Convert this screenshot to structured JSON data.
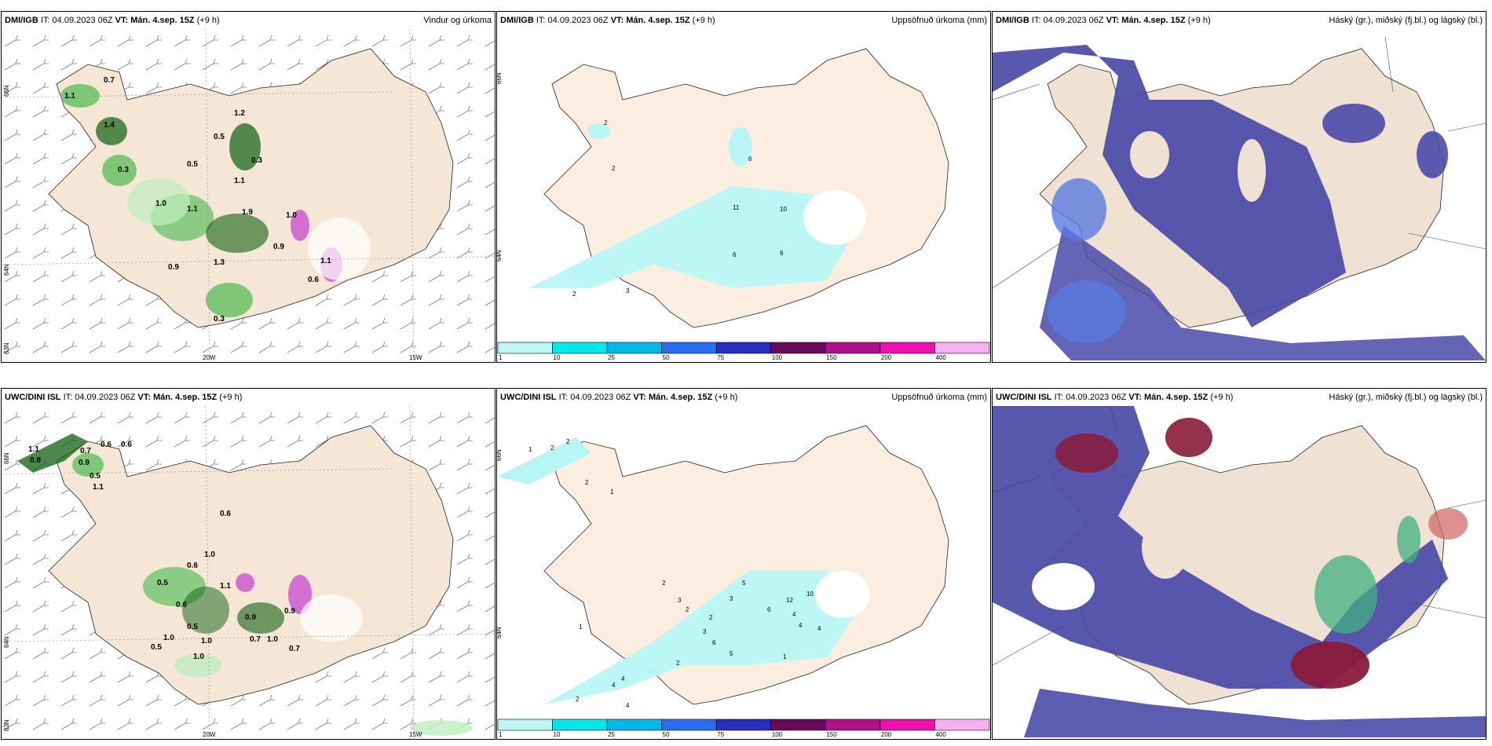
{
  "panels": [
    {
      "id": "p1",
      "model": "DMI/IGB",
      "it_label": "IT:",
      "it_value": "04.09.2023 06Z",
      "vt_label": "VT:",
      "vt_value": "Mán. 4.sep. 15Z",
      "lead": "(+9 h)",
      "product": "Vindur og úrkoma"
    },
    {
      "id": "p2",
      "model": "DMI/IGB",
      "it_label": "IT:",
      "it_value": "04.09.2023 06Z",
      "vt_label": "VT:",
      "vt_value": "Mán. 4.sep. 15Z",
      "lead": "(+9 h)",
      "product": "Uppsöfnuð úrkoma (mm)"
    },
    {
      "id": "p3",
      "model": "DMI/IGB",
      "it_label": "IT:",
      "it_value": "04.09.2023 06Z",
      "vt_label": "VT:",
      "vt_value": "Mán. 4.sep. 15Z",
      "lead": "(+9 h)",
      "product": "Háský (gr.), miðský (fj.bl.) og lágský (bl.)"
    },
    {
      "id": "p4",
      "model": "UWC/DINI ISL",
      "it_label": "IT:",
      "it_value": "04.09.2023 06Z",
      "vt_label": "VT:",
      "vt_value": "Mán. 4.sep. 15Z",
      "lead": "(+9 h)",
      "product": ""
    },
    {
      "id": "p5",
      "model": "UWC/DINI ISL",
      "it_label": "IT:",
      "it_value": "04.09.2023 06Z",
      "vt_label": "VT:",
      "vt_value": "Mán. 4.sep. 15Z",
      "lead": "(+9 h)",
      "product": "Uppsöfnuð úrkoma (mm)"
    },
    {
      "id": "p6",
      "model": "UWC/DINI ISL",
      "it_label": "IT:",
      "it_value": "04.09.2023 06Z",
      "vt_label": "VT:",
      "vt_value": "Mán. 4.sep. 15Z",
      "lead": "(+9 h)",
      "product": "Háský (gr.), miðský (fj.bl.) og lágský (bl.)"
    }
  ],
  "axes": {
    "lat_66": "66N",
    "lat_64": "64N",
    "lat_63": "63N",
    "lon_20": "20W",
    "lon_15": "15W"
  },
  "colorbar": {
    "levels": [
      "1",
      "10",
      "25",
      "50",
      "75",
      "100",
      "150",
      "200",
      "400"
    ],
    "colors": [
      "#bff7f7",
      "#00e8e8",
      "#00b8e8",
      "#2a6ef0",
      "#2a2ec0",
      "#6a0a5a",
      "#b0108a",
      "#f010b0",
      "#f5b0f0"
    ]
  },
  "colors": {
    "land": "#f5e6d6",
    "precip_light": "#bfeebf",
    "precip_mid": "#5fbf5f",
    "precip_dark": "#105f10",
    "accum": "#b8f6f6",
    "low_cloud": "#4a4aa8",
    "mid_cloud": "#5a7ae0",
    "high_cloud": "#8a1a3a"
  },
  "p1_labels": [
    "0.7",
    "1.1",
    "1.2",
    "0.5",
    "0.3",
    "0.5",
    "1.4",
    "0.3",
    "1.1",
    "1.0",
    "1.1",
    "1.9",
    "0.9",
    "1.3",
    "0.9",
    "0.6",
    "1.1",
    "0.3",
    "1.0"
  ],
  "p4_labels": [
    "1.1",
    "0.8",
    "0.7",
    "0.6",
    "0.6",
    "0.9",
    "0.5",
    "1.1",
    "0.6",
    "0.6",
    "1.0",
    "0.5",
    "0.6",
    "1.1",
    "0.9",
    "0.5",
    "1.0",
    "0.9",
    "1.0",
    "0.7",
    "0.7",
    "0.5",
    "1.0",
    "1.0"
  ],
  "p2_labels": [
    "2",
    "2",
    "6",
    "11",
    "10",
    "6",
    "6",
    "2",
    "3"
  ],
  "p5_labels": [
    "1",
    "2",
    "2",
    "2",
    "1",
    "2",
    "1",
    "5",
    "3",
    "4",
    "6",
    "10",
    "12",
    "2",
    "2",
    "3",
    "3",
    "6",
    "4",
    "5",
    "4",
    "2",
    "1",
    "4",
    "4",
    "4",
    "2"
  ]
}
